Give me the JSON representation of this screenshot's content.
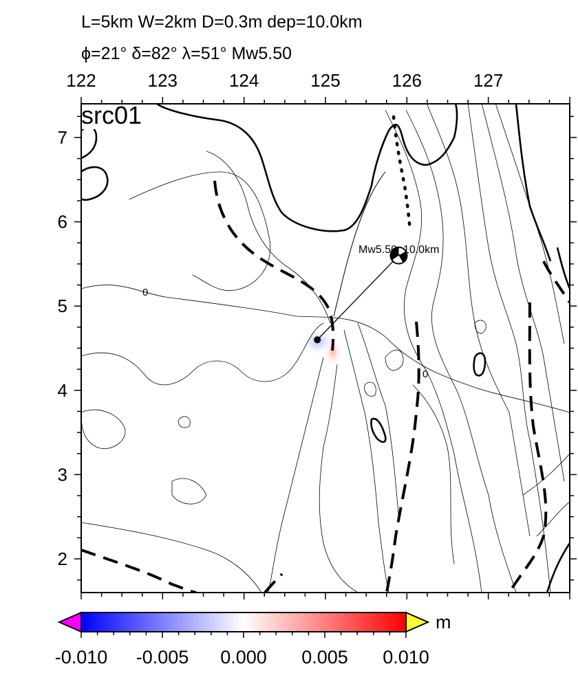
{
  "title": {
    "line1": "L=5km W=2km D=0.3m dep=10.0km",
    "line2": "ϕ=21° δ=82° λ=51° Mw5.50"
  },
  "map": {
    "panel_label": "src01",
    "event_label": "Mw5.50_10.0km",
    "contour_zero_label_1": "0",
    "contour_zero_label_2": "0",
    "x_range": [
      122,
      128
    ],
    "y_range": [
      1.6,
      7.4
    ],
    "x_ticks": [
      "122",
      "123",
      "124",
      "125",
      "126",
      "127"
    ],
    "y_ticks": [
      "7",
      "6",
      "5",
      "4",
      "3",
      "2"
    ],
    "epicenter": {
      "lon": 124.9,
      "lat": 4.6
    },
    "mechanism": {
      "lon": 125.9,
      "lat": 5.6
    }
  },
  "colorbar": {
    "unit": "m",
    "ticks": [
      "-0.010",
      "-0.005",
      "0.000",
      "0.005",
      "0.010"
    ],
    "min_value": -0.01,
    "max_value": 0.01,
    "colors": {
      "negative": "#0000ff",
      "zero": "#ffffff",
      "positive": "#ff0000",
      "under": "#ff00ff",
      "over": "#ffff33"
    }
  }
}
